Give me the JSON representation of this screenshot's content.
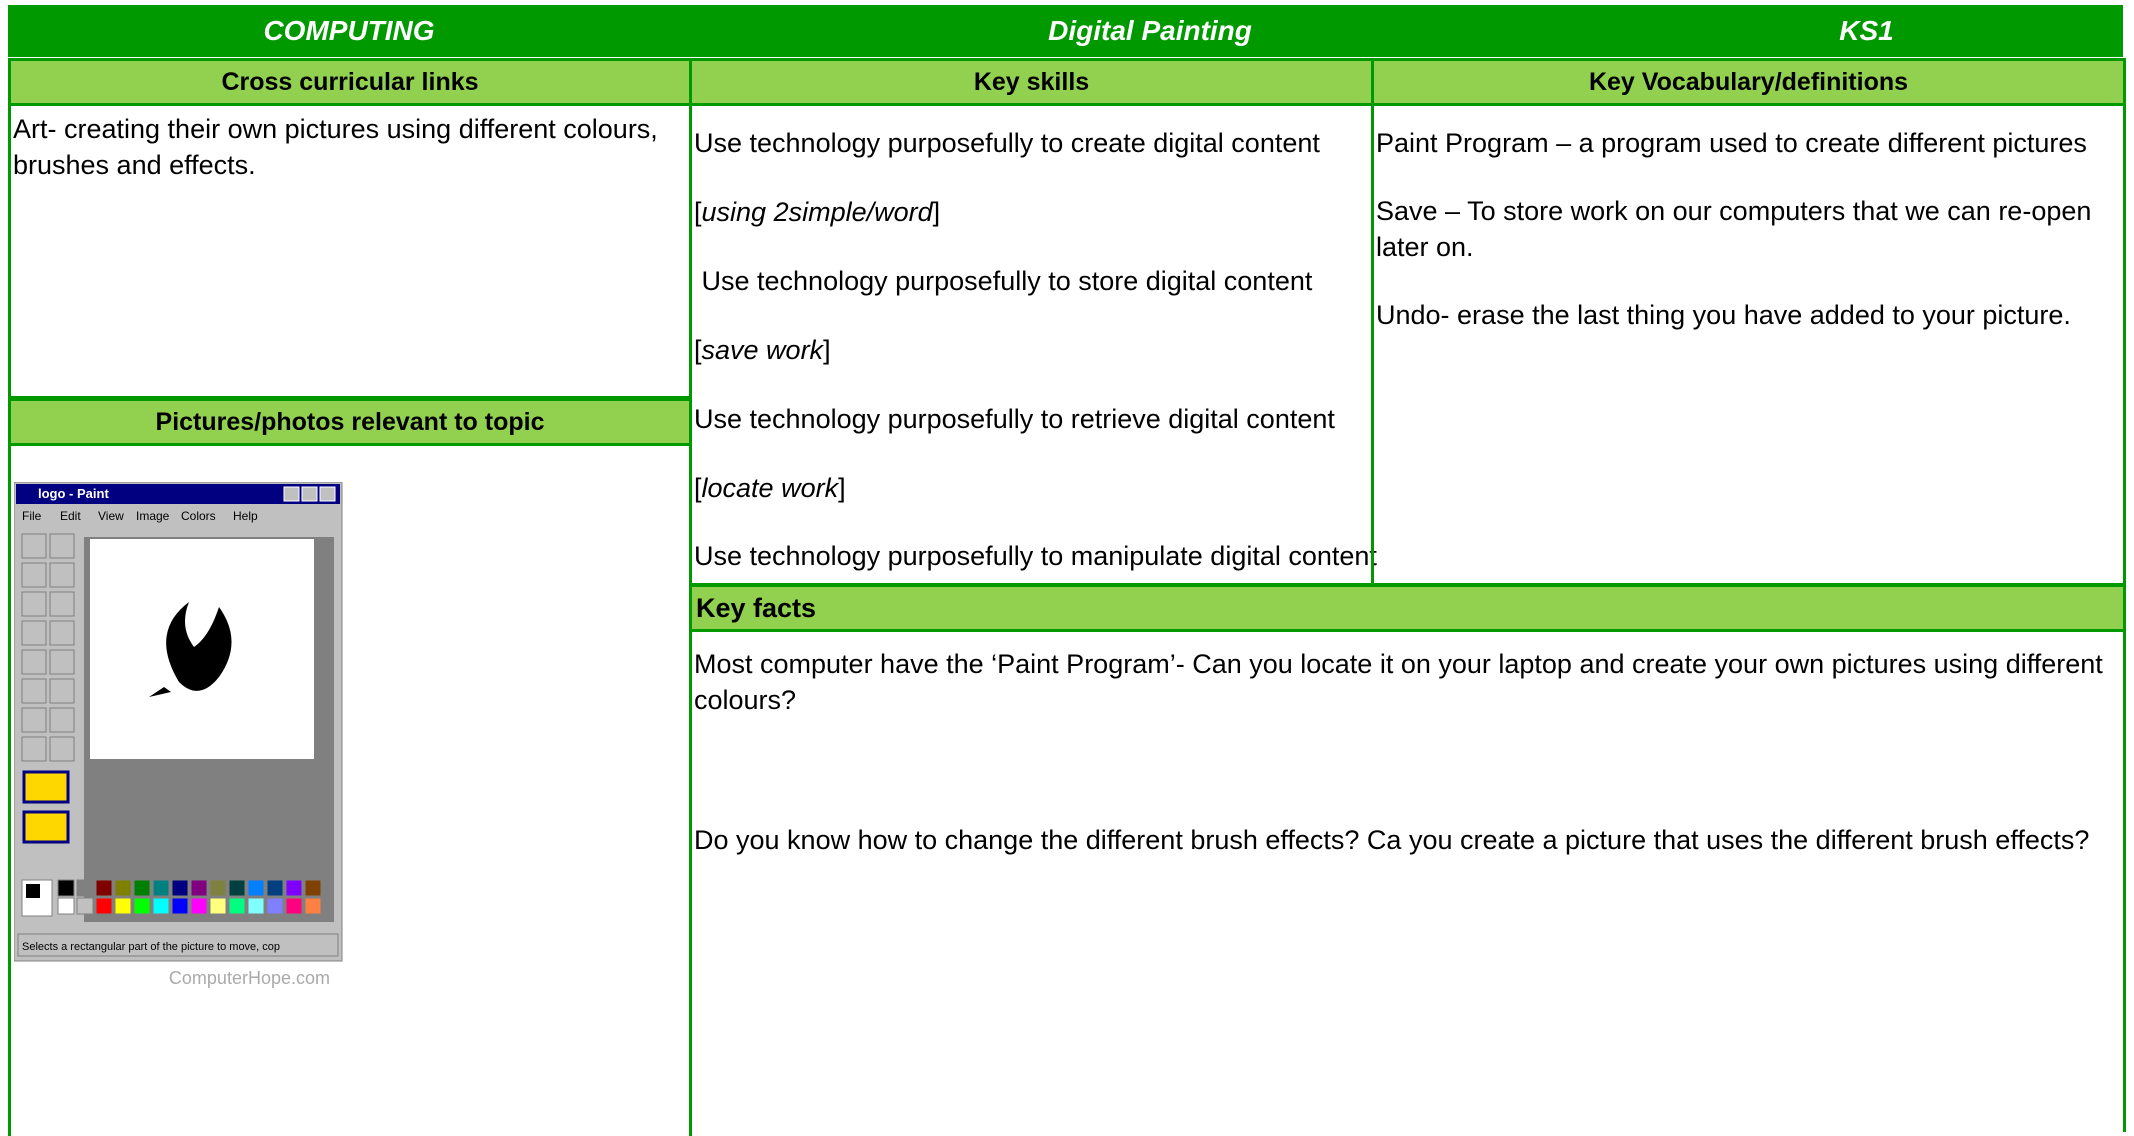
{
  "header": {
    "subject": "COMPUTING",
    "topic": "Digital Painting",
    "stage": "KS1"
  },
  "cross_curricular": {
    "heading": "Cross curricular links",
    "text": "Art- creating their own pictures using different colours, brushes and effects."
  },
  "pictures": {
    "heading": "Pictures/photos relevant to topic",
    "window_title": "logo - Paint",
    "menu": [
      "File",
      "Edit",
      "View",
      "Image",
      "Colors",
      "Help"
    ],
    "status": "Selects a rectangular part of the picture to move, cop",
    "credit": "ComputerHope.com"
  },
  "key_skills": {
    "heading": "Key  skills",
    "items": [
      {
        "text": "Use technology purposefully to create digital content"
      },
      {
        "before": "[",
        "italic": "using 2simple/word",
        "after": "]"
      },
      {
        "text": " Use technology purposefully to store digital content"
      },
      {
        "before": "[",
        "italic": "save work",
        "after": "]"
      },
      {
        "text": "Use technology purposefully to retrieve digital content"
      },
      {
        "before": "[",
        "italic": "locate work",
        "after": "]"
      },
      {
        "text": "Use technology purposefully to manipulate digital content"
      }
    ]
  },
  "vocabulary": {
    "heading": "Key  Vocabulary/definitions",
    "items": [
      "Paint Program – a program used to create different pictures",
      "Save – To store work on our computers that we can re-open later on.",
      "Undo- erase the last thing you have added to your picture."
    ]
  },
  "key_facts": {
    "heading": "Key facts",
    "items": [
      "Most computer have the ‘Paint Program’- Can you locate it on your laptop and create your own pictures using different colours?",
      "Do you know how to change the different brush effects? Ca you create a picture that uses the different brush effects?"
    ]
  }
}
